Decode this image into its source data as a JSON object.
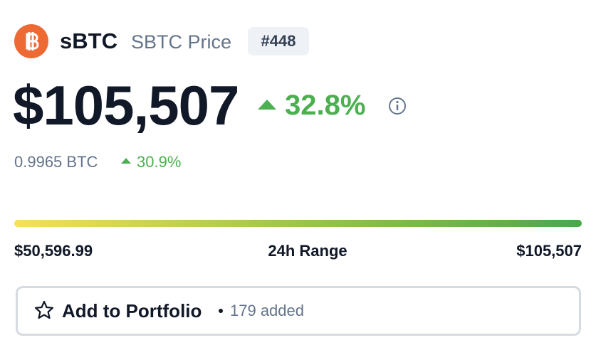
{
  "header": {
    "name": "sBTC",
    "subtitle": "SBTC Price",
    "rank": "#448"
  },
  "price": {
    "value": "$105,507",
    "change": "32.8%"
  },
  "btc": {
    "value": "0.9965 BTC",
    "change": "30.9%"
  },
  "range": {
    "low": "$50,596.99",
    "label": "24h Range",
    "high": "$105,507"
  },
  "portfolio": {
    "button": "Add to Portfolio",
    "count": "179 added"
  }
}
